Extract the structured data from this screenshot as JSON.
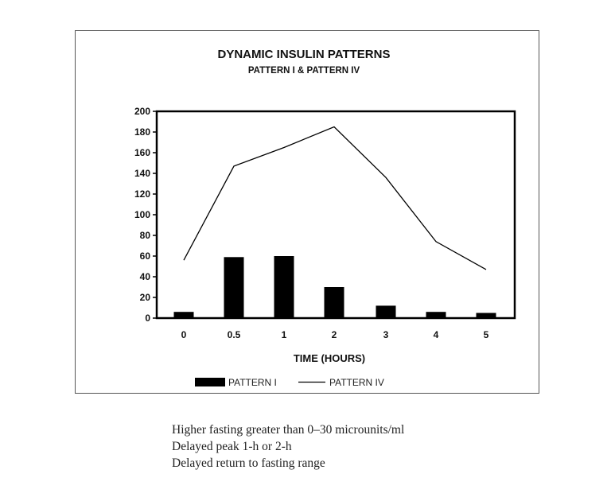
{
  "chart_data": {
    "type": "bar",
    "title": "DYNAMIC INSULIN PATTERNS",
    "subtitle": "PATTERN I & PATTERN IV",
    "xlabel": "TIME (HOURS)",
    "ylabel": "",
    "categories": [
      "0",
      "0.5",
      "1",
      "2",
      "3",
      "4",
      "5"
    ],
    "ylim": [
      0,
      200
    ],
    "yticks": [
      0,
      20,
      40,
      60,
      80,
      100,
      120,
      140,
      160,
      180,
      200
    ],
    "grid": false,
    "legend_position": "bottom",
    "series": [
      {
        "name": "PATTERN I",
        "type": "bar",
        "color": "#000000",
        "values": [
          6,
          59,
          60,
          30,
          12,
          6,
          5
        ]
      },
      {
        "name": "PATTERN IV",
        "type": "line",
        "color": "#000000",
        "values": [
          56,
          147,
          165,
          185,
          136,
          74,
          47
        ]
      }
    ]
  },
  "caption": [
    "Higher fasting greater than 0–30 microunits/ml",
    "Delayed peak 1-h or 2-h",
    "Delayed return to fasting range"
  ]
}
